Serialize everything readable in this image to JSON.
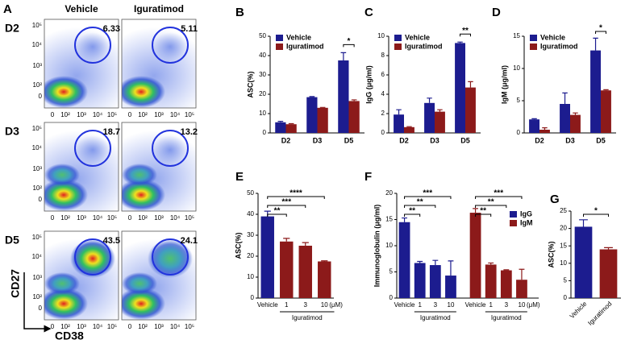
{
  "flow": {
    "panel": "A",
    "columns": [
      "Vehicle",
      "Iguratimod"
    ],
    "rows": [
      {
        "label": "D2",
        "percentages": [
          6.33,
          5.11
        ]
      },
      {
        "label": "D3",
        "percentages": [
          18.7,
          13.2
        ]
      },
      {
        "label": "D5",
        "percentages": [
          43.5,
          24.1
        ]
      }
    ],
    "yticks": [
      "10⁵",
      "10⁴",
      "10³",
      "10²",
      "0"
    ],
    "xticks": [
      "0",
      "10²",
      "10³",
      "10⁴",
      "10⁵"
    ],
    "ylabel": "CD27",
    "xlabel": "CD38"
  },
  "chart_data": [
    {
      "type": "bar",
      "panel": "B",
      "ylabel": "ASC(%)",
      "categories": [
        "D2",
        "D3",
        "D5"
      ],
      "series": [
        {
          "name": "Vehicle",
          "color": "#1c1c8f",
          "values": [
            5.5,
            18.5,
            37.5
          ],
          "errors": [
            0.5,
            0.3,
            4
          ]
        },
        {
          "name": "Iguratimod",
          "color": "#8c1a1a",
          "values": [
            4.5,
            13,
            16.5
          ],
          "errors": [
            0.3,
            0.2,
            0.6
          ]
        }
      ],
      "ylim": [
        0,
        50
      ],
      "yticks": [
        0,
        10,
        20,
        30,
        40,
        50
      ],
      "brackets": [
        {
          "category": 2,
          "label": "*"
        }
      ],
      "legend": true
    },
    {
      "type": "bar",
      "panel": "C",
      "ylabel": "IgG (μg/ml)",
      "categories": [
        "D2",
        "D3",
        "D5"
      ],
      "series": [
        {
          "name": "Vehicle",
          "color": "#1c1c8f",
          "values": [
            1.9,
            3.1,
            9.3
          ],
          "errors": [
            0.5,
            0.5,
            0.1
          ]
        },
        {
          "name": "Iguratimod",
          "color": "#8c1a1a",
          "values": [
            0.6,
            2.2,
            4.7
          ],
          "errors": [
            0.05,
            0.2,
            0.6
          ]
        }
      ],
      "ylim": [
        0,
        10
      ],
      "yticks": [
        0,
        2,
        4,
        6,
        8,
        10
      ],
      "brackets": [
        {
          "category": 2,
          "label": "**"
        }
      ],
      "legend": true
    },
    {
      "type": "bar",
      "panel": "D",
      "ylabel": "IgM (μg/ml)",
      "categories": [
        "D2",
        "D3",
        "D5"
      ],
      "series": [
        {
          "name": "Vehicle",
          "color": "#1c1c8f",
          "values": [
            2.1,
            4.5,
            12.8
          ],
          "errors": [
            0.1,
            1.7,
            1.9
          ]
        },
        {
          "name": "Iguratimod",
          "color": "#8c1a1a",
          "values": [
            0.5,
            2.8,
            6.6
          ],
          "errors": [
            0.3,
            0.3,
            0.1
          ]
        }
      ],
      "ylim": [
        0,
        15
      ],
      "yticks": [
        0,
        5,
        10,
        15
      ],
      "brackets": [
        {
          "category": 2,
          "label": "*"
        }
      ],
      "legend": true
    },
    {
      "type": "bar",
      "panel": "E",
      "ylabel": "ASC(%)",
      "categories": [
        "Vehicle",
        "1",
        "3",
        "10"
      ],
      "unit": "(μM)",
      "group_label": "Iguratimod",
      "values": [
        39,
        27,
        25,
        17.5
      ],
      "errors": [
        2.5,
        1.5,
        1.5,
        0.3
      ],
      "colors": [
        "#1c1c8f",
        "#8c1a1a",
        "#8c1a1a",
        "#8c1a1a"
      ],
      "ylim": [
        0,
        50
      ],
      "yticks": [
        0,
        10,
        20,
        30,
        40,
        50
      ],
      "brackets": [
        {
          "from": 0,
          "to": 3,
          "label": "****"
        },
        {
          "from": 0,
          "to": 2,
          "label": "***"
        },
        {
          "from": 0,
          "to": 1,
          "label": "**"
        }
      ]
    },
    {
      "type": "bar",
      "panel": "F",
      "ylabel": "Immunoglobulin (μg/ml)",
      "categories": [
        "Vehicle",
        "1",
        "3",
        "10"
      ],
      "unit": "(μM)",
      "group_label": "Iguratimod",
      "series": [
        {
          "name": "IgG",
          "color": "#1c1c8f",
          "values": [
            14.5,
            6.7,
            6.3,
            4.3
          ],
          "errors": [
            0.8,
            0.3,
            0.9,
            2.8
          ],
          "brackets": [
            {
              "from": 0,
              "to": 3,
              "label": "***"
            },
            {
              "from": 0,
              "to": 2,
              "label": "**"
            },
            {
              "from": 0,
              "to": 1,
              "label": "**"
            }
          ]
        },
        {
          "name": "IgM",
          "color": "#8c1a1a",
          "values": [
            16.3,
            6.4,
            5.3,
            3.5
          ],
          "errors": [
            0.8,
            0.3,
            0.1,
            2.0
          ],
          "brackets": [
            {
              "from": 0,
              "to": 3,
              "label": "***"
            },
            {
              "from": 0,
              "to": 2,
              "label": "**"
            },
            {
              "from": 0,
              "to": 1,
              "label": "**"
            }
          ]
        }
      ],
      "ylim": [
        0,
        20
      ],
      "yticks": [
        0,
        5,
        10,
        15,
        20
      ],
      "legend": true
    },
    {
      "type": "bar",
      "panel": "G",
      "ylabel": "ASC(%)",
      "categories": [
        "Vehicle",
        "Iguratimod"
      ],
      "values": [
        20.5,
        14
      ],
      "errors": [
        2,
        0.5
      ],
      "colors": [
        "#1c1c8f",
        "#8c1a1a"
      ],
      "ylim": [
        0,
        25
      ],
      "yticks": [
        0,
        5,
        10,
        15,
        20,
        25
      ],
      "brackets": [
        {
          "from": 0,
          "to": 1,
          "label": "*"
        }
      ]
    }
  ]
}
